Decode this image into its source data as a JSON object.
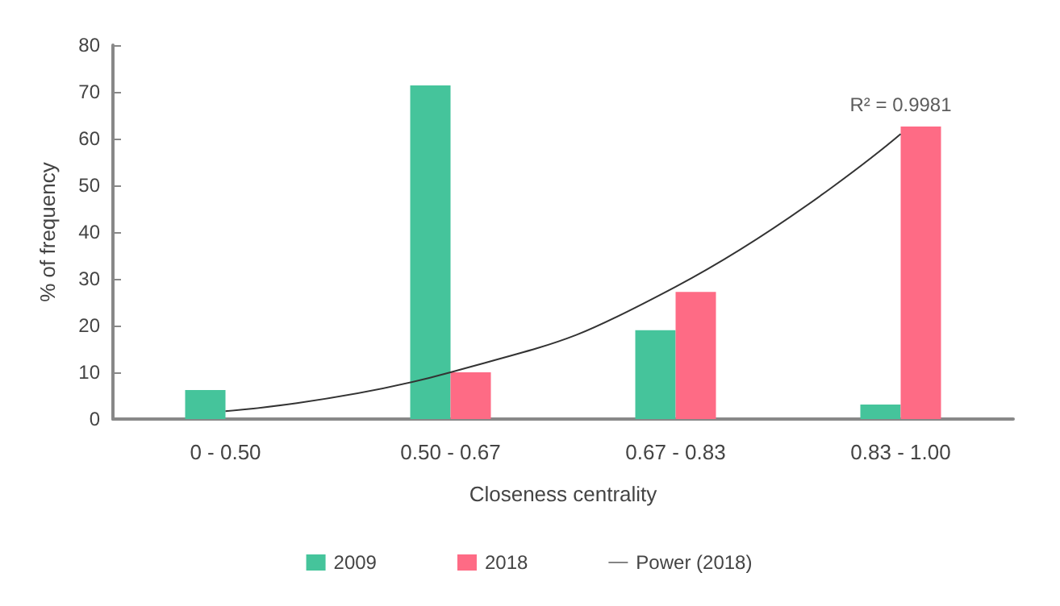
{
  "chart_data": {
    "type": "bar",
    "xlabel": "Closeness centrality",
    "ylabel": "% of frequency",
    "categories": [
      "0 - 0.50",
      "0.50 - 0.67",
      "0.67 - 0.83",
      "0.83 - 1.00"
    ],
    "series": [
      {
        "name": "2009",
        "color": "#45c49b",
        "values": [
          6.2,
          71.4,
          19,
          3.1
        ]
      },
      {
        "name": "2018",
        "color": "#fe6b85",
        "values": [
          0,
          10,
          27.2,
          62.6
        ]
      },
      {
        "name": "Power (2018)",
        "type": "line",
        "color": "#333333",
        "x": [
          "0 - 0.50",
          "0.50 - 0.67",
          "0.67 - 0.83",
          "0.83 - 1.00"
        ],
        "values": [
          1.7,
          10,
          28.3,
          61
        ]
      }
    ],
    "annotations": [
      {
        "text": "R² = 0.9981",
        "x": "0.83 - 1.00",
        "y": 61
      }
    ],
    "ylim": [
      0,
      80
    ],
    "yticks": [
      0,
      10,
      20,
      30,
      40,
      50,
      60,
      70,
      80
    ],
    "grid": false,
    "legend": "bottom",
    "marker": "none"
  }
}
